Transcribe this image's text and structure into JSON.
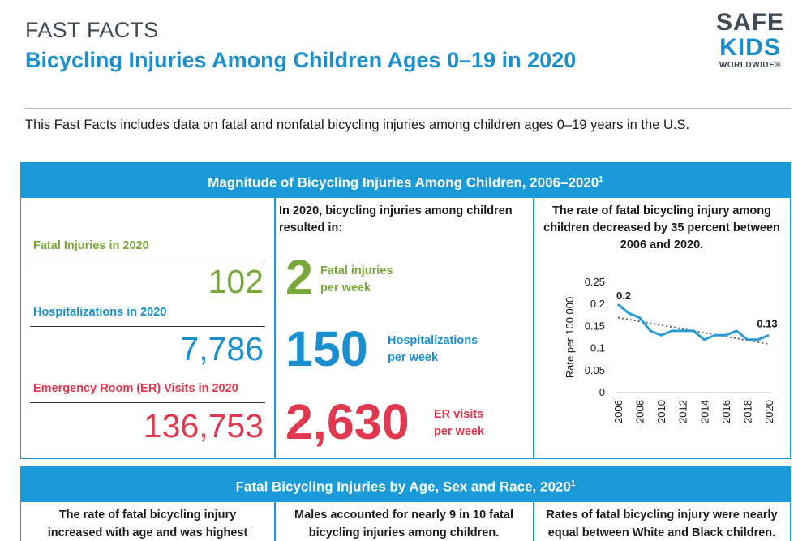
{
  "header": {
    "kicker": "FAST FACTS",
    "title": "Bicycling Injuries Among Children Ages 0–19 in 2020"
  },
  "logo": {
    "line1": "SAFE",
    "line2": "KIDS",
    "line3": "WORLDWIDE®"
  },
  "intro": "This Fast Facts includes data on fatal and nonfatal bicycling injuries among children ages 0–19 years in the U.S.",
  "section1": {
    "title": "Magnitude of Bicycling Injuries Among Children, 2006–2020",
    "footnote": "1",
    "stats": [
      {
        "label": "Fatal Injuries in 2020",
        "value": "102"
      },
      {
        "label": "Hospitalizations in 2020",
        "value": "7,786"
      },
      {
        "label": "Emergency Room (ER) Visits in 2020",
        "value": "136,753"
      }
    ],
    "weekly": {
      "heading": "In 2020, bicycling injuries among children resulted in:",
      "items": [
        {
          "number": "2",
          "line1": "Fatal injuries",
          "line2": "per week"
        },
        {
          "number": "150",
          "line1": "Hospitalizations",
          "line2": "per week"
        },
        {
          "number": "2,630",
          "line1": "ER visits",
          "line2": "per week"
        }
      ]
    },
    "trend": {
      "heading": "The rate of fatal bicycling injury among children decreased by 35 percent between 2006 and 2020."
    }
  },
  "chart_data": {
    "type": "line",
    "title": "",
    "xlabel": "",
    "ylabel": "Rate per 100,000",
    "x": [
      2006,
      2007,
      2008,
      2009,
      2010,
      2011,
      2012,
      2013,
      2014,
      2015,
      2016,
      2017,
      2018,
      2019,
      2020
    ],
    "series": [
      {
        "name": "Rate",
        "values": [
          0.2,
          0.18,
          0.17,
          0.14,
          0.13,
          0.14,
          0.14,
          0.14,
          0.12,
          0.13,
          0.13,
          0.14,
          0.12,
          0.12,
          0.13
        ]
      }
    ],
    "trendline": {
      "start": 0.17,
      "end": 0.11
    },
    "ylim": [
      0,
      0.25
    ],
    "yticks": [
      "0",
      "0.05",
      "0.1",
      "0.15",
      "0.2",
      "0.25"
    ],
    "xticks": [
      "2006",
      "2008",
      "2010",
      "2012",
      "2014",
      "2016",
      "2018",
      "2020"
    ],
    "annotations": [
      {
        "x": 2006,
        "y": 0.2,
        "text": "0.2"
      },
      {
        "x": 2020,
        "y": 0.13,
        "text": "0.13"
      }
    ],
    "colors": {
      "line": "#2b9bd6",
      "trend": "#555555"
    }
  },
  "section2": {
    "title": "Fatal Bicycling Injuries by Age, Sex and Race, 2020",
    "footnote": "1",
    "columns": [
      {
        "line1": "The rate of fatal bicycling injury",
        "line2": "increased with age and was highest"
      },
      {
        "line1": "Males accounted for nearly 9 in 10 fatal",
        "line2": "bicycling injuries among children."
      },
      {
        "line1": "Rates of fatal bicycling injury were nearly",
        "line2": "equal between White and Black children."
      }
    ]
  }
}
